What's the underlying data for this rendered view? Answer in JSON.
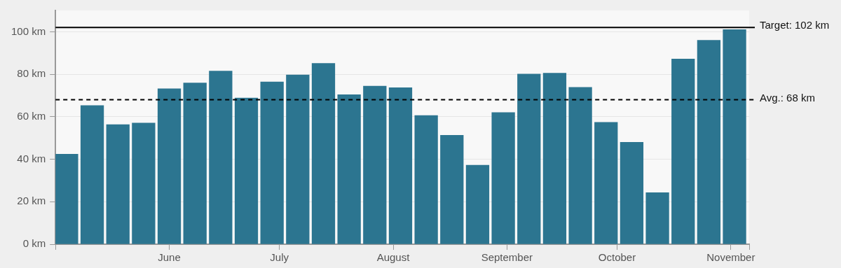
{
  "chart_data": {
    "type": "bar",
    "x": [
      "--05-04",
      "--05-11",
      "--05-18",
      "--05-25",
      "--06-01",
      "--06-08",
      "--06-15",
      "--06-22",
      "--06-29",
      "--07-06",
      "--07-13",
      "--07-20",
      "--07-27",
      "--08-03",
      "--08-10",
      "--08-17",
      "--08-24",
      "--08-31",
      "--09-07",
      "--09-14",
      "--09-21",
      "--09-28",
      "--10-05",
      "--10-12",
      "--10-19",
      "--10-26",
      "--11-02"
    ],
    "values": [
      42.4,
      65.3,
      56.3,
      57,
      73.2,
      75.9,
      81.5,
      68.8,
      76.4,
      79.7,
      85.1,
      70.4,
      74.4,
      73.7,
      60.6,
      51.3,
      37.2,
      62,
      80.1,
      80.5,
      73.8,
      57.4,
      48,
      24.3,
      87.2,
      96,
      101
    ],
    "color": "#2c7590",
    "xlim": [
      "--05-01",
      "--11-06"
    ],
    "xticks": [
      {
        "value": "--05-01",
        "label": null
      },
      {
        "value": "--06-01",
        "label": "June"
      },
      {
        "value": "--07-01",
        "label": "July"
      },
      {
        "value": "--08-01",
        "label": "August"
      },
      {
        "value": "--09-01",
        "label": "September"
      },
      {
        "value": "--10-01",
        "label": "October"
      },
      {
        "value": "--11-01",
        "label": "November"
      },
      {
        "value": "--11-06",
        "label": null
      }
    ],
    "ylim": [
      0,
      110
    ],
    "yticks": [
      {
        "value": 0,
        "label": "0 km"
      },
      {
        "value": 20,
        "label": "20 km"
      },
      {
        "value": 40,
        "label": "40 km"
      },
      {
        "value": 60,
        "label": "60 km"
      },
      {
        "value": 80,
        "label": "80 km"
      },
      {
        "value": 100,
        "label": "100 km"
      }
    ],
    "grid": "y",
    "legend": false,
    "ref_lines": [
      {
        "axis": "y",
        "value": 102,
        "label": "Target: 102 km",
        "color": "#000000",
        "line_style": "solid"
      },
      {
        "axis": "y",
        "value": 68,
        "label": "Avg.: 68 km",
        "color": "#000000",
        "line_style": "dashed"
      }
    ]
  }
}
